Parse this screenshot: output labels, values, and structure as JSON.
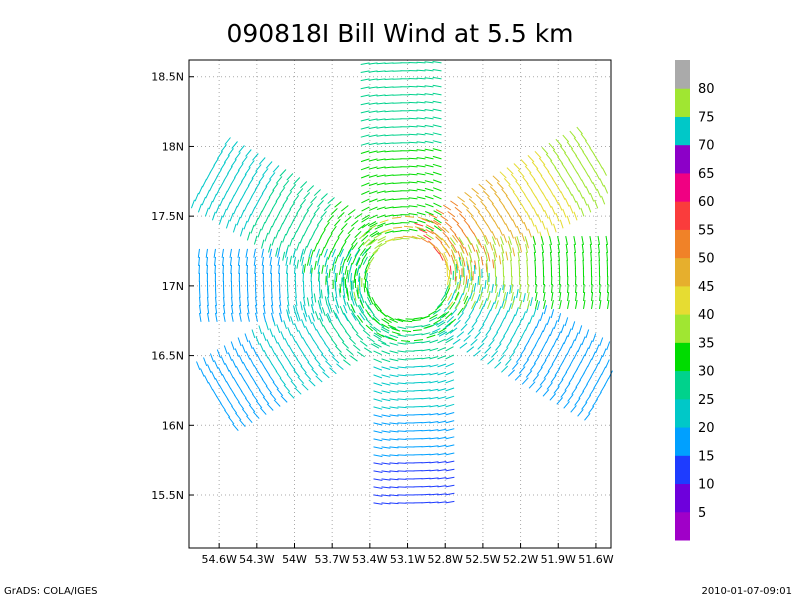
{
  "chart_data": {
    "type": "vector-field",
    "title": "090818I Bill Wind at 5.5 km",
    "x_ticks": [
      "54.6W",
      "54.3W",
      "54W",
      "53.7W",
      "53.4W",
      "53.1W",
      "52.8W",
      "52.5W",
      "52.2W",
      "51.9W",
      "51.6W"
    ],
    "x_tick_values": [
      -54.6,
      -54.3,
      -54.0,
      -53.7,
      -53.4,
      -53.1,
      -52.8,
      -52.5,
      -52.2,
      -51.9,
      -51.6
    ],
    "y_ticks": [
      "15.5N",
      "16N",
      "16.5N",
      "17N",
      "17.5N",
      "18N",
      "18.5N"
    ],
    "y_tick_values": [
      15.5,
      16.0,
      16.5,
      17.0,
      17.5,
      18.0,
      18.5
    ],
    "xlim": [
      -54.84,
      -51.48
    ],
    "ylim": [
      15.12,
      18.62
    ],
    "center": {
      "lon": -53.1,
      "lat": 17.05
    },
    "grid": true,
    "colorbar": {
      "labels": [
        "5",
        "10",
        "15",
        "20",
        "25",
        "30",
        "35",
        "40",
        "45",
        "50",
        "55",
        "60",
        "65",
        "70",
        "75",
        "80"
      ],
      "colors": [
        "#a000c8",
        "#6e00dc",
        "#1e3cff",
        "#00a0ff",
        "#00c8c8",
        "#00d28c",
        "#00dc00",
        "#a0e632",
        "#e6dc32",
        "#e6af2d",
        "#f08228",
        "#fa3c3c",
        "#f00082",
        "#8c00c8",
        "#00c8c8",
        "#a0e632",
        "#aaaaaa"
      ]
    },
    "spokes": [
      {
        "bearing_deg": 0,
        "speed_range": [
          30,
          40
        ]
      },
      {
        "bearing_deg": 60,
        "speed_range": [
          40,
          60
        ]
      },
      {
        "bearing_deg": 120,
        "speed_range": [
          20,
          30
        ]
      },
      {
        "bearing_deg": 180,
        "speed_range": [
          15,
          35
        ]
      },
      {
        "bearing_deg": 240,
        "speed_range": [
          20,
          35
        ]
      },
      {
        "bearing_deg": 300,
        "speed_range": [
          25,
          40
        ]
      },
      {
        "bearing_deg": 90,
        "speed_range": [
          35,
          45
        ]
      },
      {
        "bearing_deg": 270,
        "speed_range": [
          20,
          30
        ]
      }
    ]
  },
  "footer": {
    "left": "GrADS: COLA/IGES",
    "right": "2010-01-07-09:01"
  }
}
